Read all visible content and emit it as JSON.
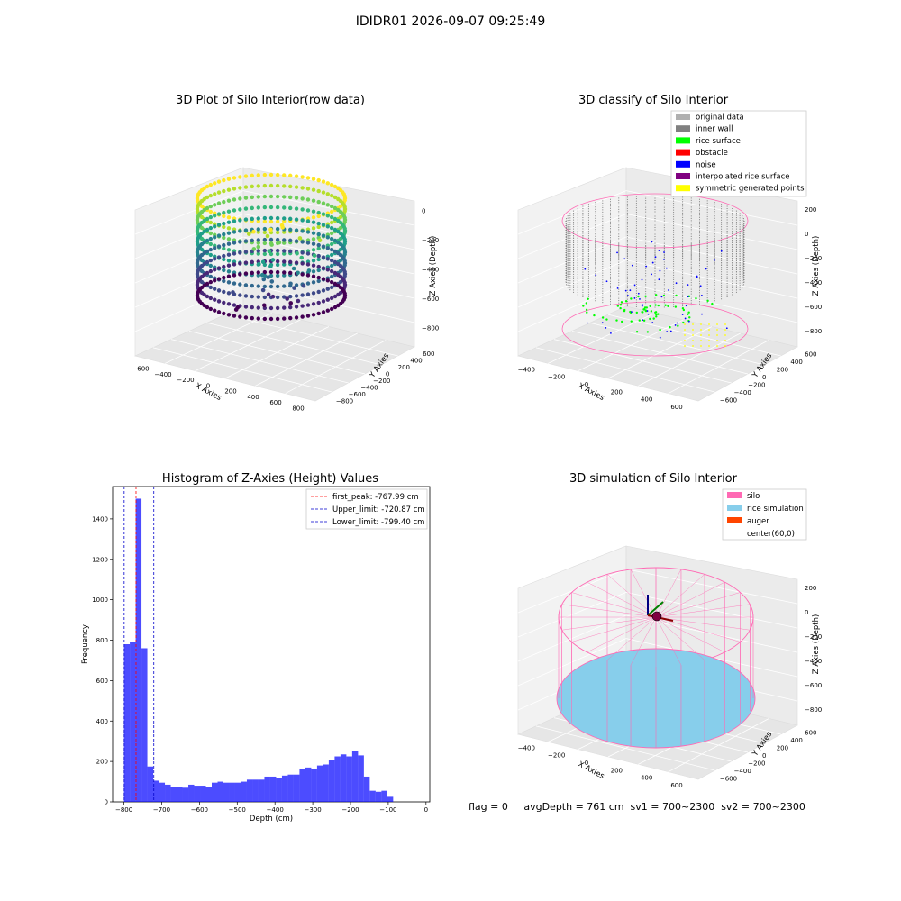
{
  "suptitle": "IDIDR01 2026-09-07 09:25:49",
  "panels": {
    "raw": {
      "title": "3D Plot of Silo Interior(row data)",
      "xlabel": "X Axies",
      "ylabel": "Y Axies",
      "zlabel": "Z Axies (Depth)",
      "xticks": [
        "−600",
        "−400",
        "−200",
        "0",
        "200",
        "400",
        "600",
        "800"
      ],
      "yticks": [
        "600",
        "400",
        "200",
        "0",
        "−200",
        "−400",
        "−600",
        "−800"
      ],
      "zticks": [
        "0",
        "−200",
        "−400",
        "−600",
        "−800"
      ]
    },
    "classify": {
      "title": "3D classify of Silo Interior",
      "xlabel": "X Axies",
      "ylabel": "Y Axies",
      "zlabel": "Z Axies (Depth)",
      "xticks": [
        "−400",
        "−200",
        "0",
        "200",
        "400",
        "600"
      ],
      "yticks": [
        "600",
        "400",
        "200",
        "0",
        "−200",
        "−400",
        "−600"
      ],
      "zticks": [
        "200",
        "0",
        "−200",
        "−400",
        "−600",
        "−800"
      ],
      "legend": [
        {
          "label": "original data",
          "color": "#b0b0b0"
        },
        {
          "label": "inner wall",
          "color": "#808080"
        },
        {
          "label": "rice surface",
          "color": "#00ff00"
        },
        {
          "label": "obstacle",
          "color": "#ff0000"
        },
        {
          "label": "noise",
          "color": "#0000ff"
        },
        {
          "label": "interpolated rice surface",
          "color": "#800080"
        },
        {
          "label": "symmetric generated points",
          "color": "#ffff00"
        }
      ]
    },
    "simulation": {
      "title": "3D simulation of Silo Interior",
      "xlabel": "X Axies",
      "ylabel": "Y Axies",
      "zlabel": "Z Axies (Depth)",
      "xticks": [
        "−400",
        "−200",
        "0",
        "200",
        "400",
        "600"
      ],
      "yticks": [
        "600",
        "400",
        "200",
        "0",
        "−200",
        "−400",
        "−600"
      ],
      "zticks": [
        "200",
        "0",
        "−200",
        "−400",
        "−600",
        "−800"
      ],
      "legend": [
        {
          "label": "silo",
          "color": "#ff69b4"
        },
        {
          "label": "rice simulation",
          "color": "#87ceeb"
        },
        {
          "label": "auger",
          "color": "#ff4500"
        },
        {
          "label": "center(60,0)",
          "color": ""
        }
      ]
    }
  },
  "chart_data": {
    "type": "bar",
    "title": "Histogram of Z-Axies (Height) Values",
    "xlabel": "Depth (cm)",
    "ylabel": "Frequency",
    "xlim": [
      -830,
      10
    ],
    "ylim": [
      0,
      1560
    ],
    "xticks": [
      "−800",
      "−700",
      "−600",
      "−500",
      "−400",
      "−300",
      "−200",
      "−100",
      "0"
    ],
    "yticks": [
      "0",
      "200",
      "400",
      "600",
      "800",
      "1000",
      "1200",
      "1400"
    ],
    "bin_width": 15.5,
    "bin_start": -800,
    "bar_color": "#0000ff",
    "values": [
      780,
      790,
      1500,
      760,
      175,
      105,
      95,
      85,
      75,
      75,
      70,
      85,
      80,
      80,
      75,
      95,
      100,
      95,
      95,
      95,
      100,
      110,
      110,
      110,
      125,
      125,
      120,
      130,
      135,
      135,
      165,
      170,
      165,
      180,
      185,
      205,
      225,
      235,
      225,
      250,
      230,
      125,
      55,
      50,
      55,
      25
    ],
    "lines": [
      {
        "label": "first_peak: -767.99 cm",
        "value": -767.99,
        "color": "#ff0000"
      },
      {
        "label": "Upper_limit: -720.87 cm",
        "value": -720.87,
        "color": "#0000cc"
      },
      {
        "label": "Lower_limit: -799.40 cm",
        "value": -799.4,
        "color": "#0000cc"
      }
    ]
  },
  "footer": "flag = 0     avgDepth = 761 cm  sv1 = 700~2300  sv2 = 700~2300"
}
